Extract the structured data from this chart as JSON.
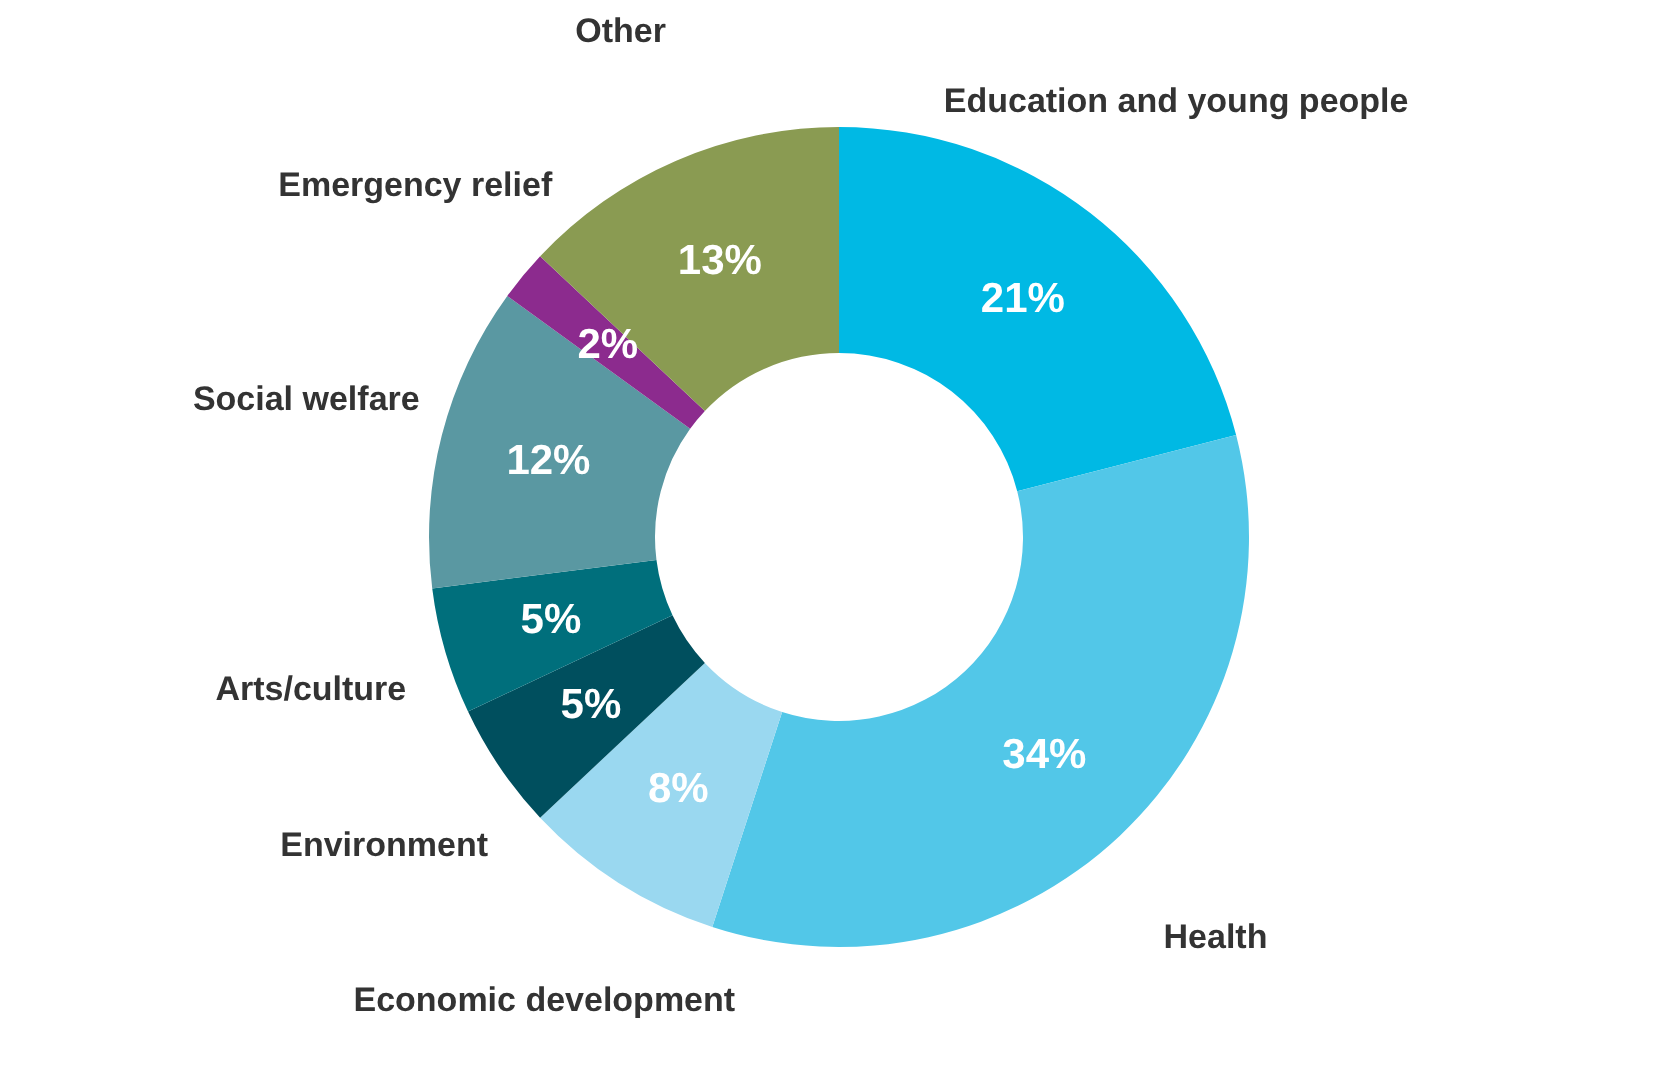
{
  "chart_data": {
    "type": "donut",
    "categories": [
      "Education and young people",
      "Health",
      "Economic development",
      "Environment",
      "Arts/culture",
      "Social welfare",
      "Emergency relief",
      "Other"
    ],
    "values": [
      21,
      34,
      8,
      5,
      5,
      12,
      2,
      13
    ],
    "colors": [
      "#00b9e4",
      "#52c7e8",
      "#9ad8f0",
      "#004f5e",
      "#006f7c",
      "#5a98a2",
      "#8c2b8e",
      "#8a9b52"
    ],
    "value_labels": [
      "21%",
      "34%",
      "8%",
      "5%",
      "5%",
      "12%",
      "2%",
      "13%"
    ]
  }
}
